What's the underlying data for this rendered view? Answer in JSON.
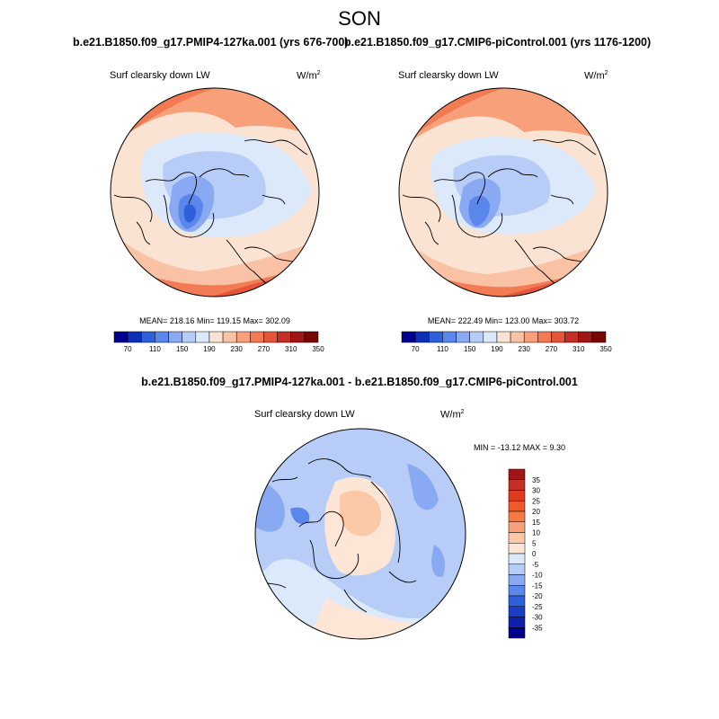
{
  "title": "SON",
  "panels": [
    {
      "case": "b.e21.B1850.f09_g17.PMIP4-127ka.001 (yrs 676-700)",
      "variable": "Surf clearsky down LW",
      "units_base": "W/m",
      "units_exp": "2",
      "stats": "MEAN= 218.16  Min= 119.15  Max= 302.09"
    },
    {
      "case": "b.e21.B1850.f09_g17.CMIP6-piControl.001 (yrs 1176-1200)",
      "variable": "Surf clearsky down LW",
      "units_base": "W/m",
      "units_exp": "2",
      "stats": "MEAN= 222.49  Min= 123.00  Max= 303.72"
    }
  ],
  "abs_colorbar": {
    "colors": [
      "#00008b",
      "#0d2fb7",
      "#2f5fdb",
      "#5b86ec",
      "#89aaf2",
      "#b7cdf7",
      "#dce9fb",
      "#fbe3d3",
      "#f9c2a4",
      "#f7a07a",
      "#f27b53",
      "#e4553a",
      "#c42e25",
      "#a01515",
      "#7a0505"
    ],
    "labels": [
      "70",
      "110",
      "150",
      "190",
      "230",
      "270",
      "310",
      "350"
    ]
  },
  "diff_panel": {
    "title": "b.e21.B1850.f09_g17.PMIP4-127ka.001 - b.e21.B1850.f09_g17.CMIP6-piControl.001",
    "variable": "Surf clearsky down LW",
    "units_base": "W/m",
    "units_exp": "2",
    "minmax": "MIN = -13.12 MAX =   9.30"
  },
  "diff_colorbar": {
    "colors": [
      "#a01515",
      "#c42e25",
      "#dc3c22",
      "#ee5a2a",
      "#f47a45",
      "#f7a07a",
      "#fbc8a8",
      "#fde6d5",
      "#dce9fb",
      "#b7cdf7",
      "#89aaf2",
      "#5b86ec",
      "#2f5fdb",
      "#1a3fc6",
      "#0d22a8",
      "#00008b"
    ],
    "labels": [
      "35",
      "30",
      "25",
      "20",
      "15",
      "10",
      "5",
      "0",
      "-5",
      "-10",
      "-15",
      "-20",
      "-25",
      "-30",
      "-35"
    ]
  }
}
